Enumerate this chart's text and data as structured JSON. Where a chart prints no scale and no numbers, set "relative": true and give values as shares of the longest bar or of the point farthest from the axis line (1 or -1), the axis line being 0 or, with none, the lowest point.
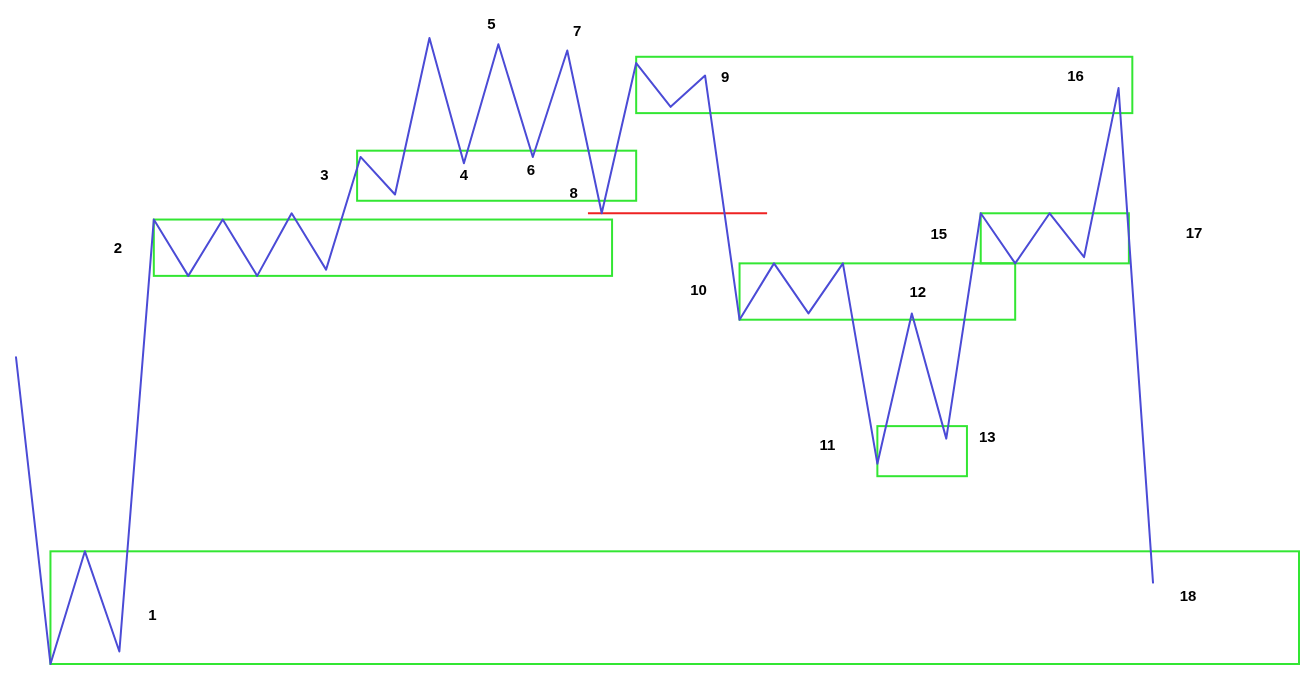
{
  "chart_data": {
    "type": "line",
    "relative": true,
    "categories": [
      null,
      null,
      null,
      null,
      null,
      null,
      null,
      null,
      null,
      null,
      null,
      null,
      null,
      null,
      null,
      null,
      null,
      null,
      null,
      null,
      null,
      null,
      null,
      null,
      null,
      null,
      null,
      null,
      null,
      null,
      null,
      null,
      null,
      null
    ],
    "series": [
      {
        "color": "#4b4bd6",
        "values": [
          0.49,
          0,
          0.18,
          0.02,
          0.71,
          0.62,
          0.71,
          0.62,
          0.72,
          0.63,
          0.81,
          0.75,
          1.0,
          0.8,
          0.99,
          0.81,
          0.98,
          0.72,
          0.96,
          0.89,
          0.94,
          0.55,
          0.64,
          0.56,
          0.64,
          0.32,
          0.56,
          0.36,
          0.72,
          0.64,
          0.72,
          0.65,
          0.92,
          0.13
        ]
      }
    ],
    "annotations": [
      "1",
      "2",
      "3",
      "4",
      "5",
      "6",
      "7",
      "8",
      "9",
      "10",
      "11",
      "12",
      "13",
      "15",
      "16",
      "17",
      "18"
    ]
  }
}
